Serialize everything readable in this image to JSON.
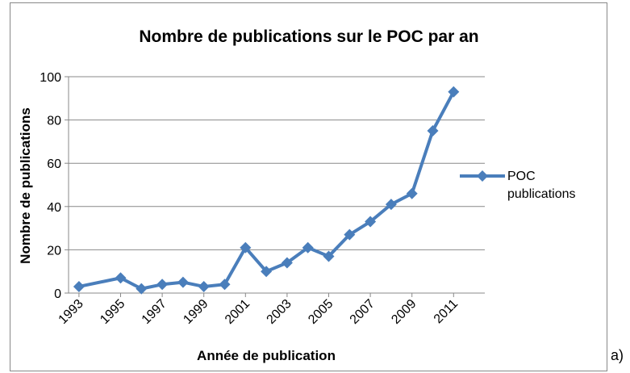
{
  "chart_data": {
    "type": "line",
    "title": "Nombre de publications sur le POC par an",
    "xlabel": "Année de publication",
    "ylabel": "Nombre de publications",
    "annotation": "a)",
    "x": [
      1993,
      1995,
      1996,
      1997,
      1998,
      1999,
      2000,
      2001,
      2002,
      2003,
      2004,
      2005,
      2006,
      2007,
      2008,
      2009,
      2010,
      2011
    ],
    "series": [
      {
        "name": "POC publications",
        "color": "#4a7ebb",
        "values": [
          3,
          7,
          2,
          4,
          5,
          3,
          4,
          21,
          10,
          14,
          21,
          17,
          27,
          33,
          41,
          46,
          75,
          93
        ]
      }
    ],
    "xlim": [
      1992.5,
      2012.5
    ],
    "xticks": [
      1993,
      1995,
      1997,
      1999,
      2001,
      2003,
      2005,
      2007,
      2009,
      2011
    ],
    "ylim": [
      0,
      100
    ],
    "yticks": [
      0,
      20,
      40,
      60,
      80,
      100
    ],
    "grid": true,
    "legend": "right"
  }
}
